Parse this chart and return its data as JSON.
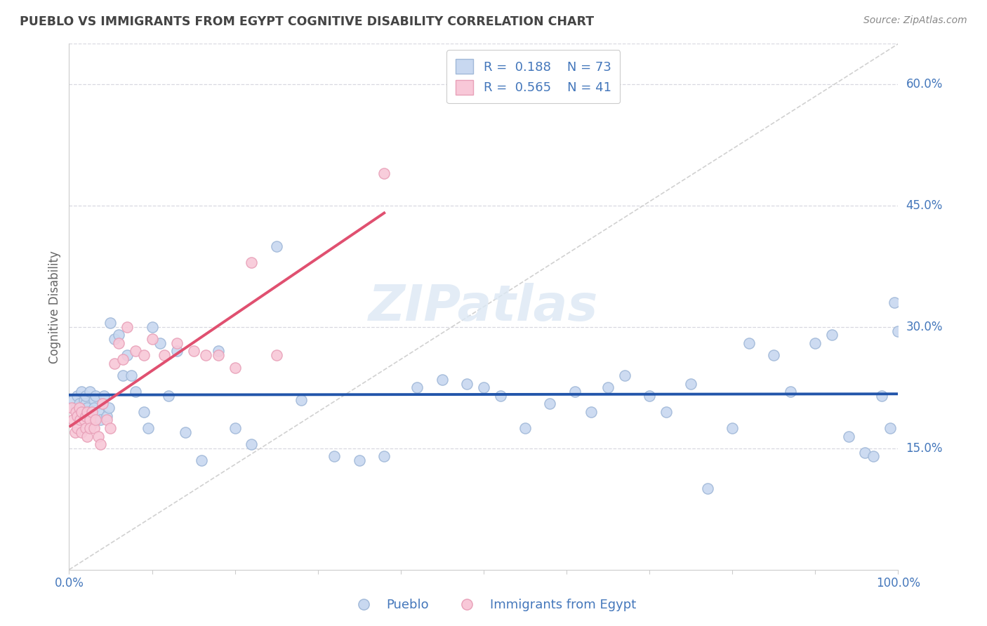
{
  "title": "PUEBLO VS IMMIGRANTS FROM EGYPT COGNITIVE DISABILITY CORRELATION CHART",
  "source": "Source: ZipAtlas.com",
  "ylabel": "Cognitive Disability",
  "xlim": [
    0.0,
    1.0
  ],
  "ylim": [
    0.0,
    0.65
  ],
  "yticks": [
    0.15,
    0.3,
    0.45,
    0.6
  ],
  "ytick_labels": [
    "15.0%",
    "30.0%",
    "45.0%",
    "60.0%"
  ],
  "background_color": "#ffffff",
  "grid_color": "#d8d8e0",
  "pueblo_face_color": "#c8d8f0",
  "pueblo_edge_color": "#a0b8d8",
  "egypt_face_color": "#f8c8d8",
  "egypt_edge_color": "#e8a0b8",
  "pueblo_line_color": "#2255aa",
  "egypt_line_color": "#e05070",
  "diagonal_color": "#cccccc",
  "tick_label_color": "#4477bb",
  "watermark_color": "#dce8f4",
  "ylabel_color": "#666666",
  "title_color": "#444444",
  "source_color": "#888888",
  "legend_text_color": "#4477bb",
  "R_pueblo": 0.188,
  "N_pueblo": 73,
  "R_egypt": 0.565,
  "N_egypt": 41,
  "pueblo_scatter_x": [
    0.005,
    0.008,
    0.01,
    0.012,
    0.015,
    0.015,
    0.018,
    0.02,
    0.02,
    0.022,
    0.025,
    0.025,
    0.028,
    0.03,
    0.03,
    0.032,
    0.035,
    0.038,
    0.04,
    0.042,
    0.045,
    0.048,
    0.05,
    0.055,
    0.06,
    0.065,
    0.07,
    0.075,
    0.08,
    0.09,
    0.095,
    0.1,
    0.11,
    0.12,
    0.13,
    0.14,
    0.16,
    0.18,
    0.2,
    0.22,
    0.25,
    0.28,
    0.32,
    0.35,
    0.38,
    0.42,
    0.45,
    0.48,
    0.5,
    0.52,
    0.55,
    0.58,
    0.61,
    0.63,
    0.65,
    0.67,
    0.7,
    0.72,
    0.75,
    0.77,
    0.8,
    0.82,
    0.85,
    0.87,
    0.9,
    0.92,
    0.94,
    0.96,
    0.97,
    0.98,
    0.99,
    0.995,
    1.0
  ],
  "pueblo_scatter_y": [
    0.21,
    0.2,
    0.215,
    0.205,
    0.195,
    0.22,
    0.21,
    0.205,
    0.215,
    0.2,
    0.195,
    0.22,
    0.18,
    0.21,
    0.2,
    0.215,
    0.195,
    0.185,
    0.205,
    0.215,
    0.19,
    0.2,
    0.305,
    0.285,
    0.29,
    0.24,
    0.265,
    0.24,
    0.22,
    0.195,
    0.175,
    0.3,
    0.28,
    0.215,
    0.27,
    0.17,
    0.135,
    0.27,
    0.175,
    0.155,
    0.4,
    0.21,
    0.14,
    0.135,
    0.14,
    0.225,
    0.235,
    0.23,
    0.225,
    0.215,
    0.175,
    0.205,
    0.22,
    0.195,
    0.225,
    0.24,
    0.215,
    0.195,
    0.23,
    0.1,
    0.175,
    0.28,
    0.265,
    0.22,
    0.28,
    0.29,
    0.165,
    0.145,
    0.14,
    0.215,
    0.175,
    0.33,
    0.295
  ],
  "egypt_scatter_x": [
    0.003,
    0.005,
    0.007,
    0.008,
    0.01,
    0.01,
    0.012,
    0.013,
    0.015,
    0.015,
    0.018,
    0.02,
    0.02,
    0.022,
    0.022,
    0.025,
    0.025,
    0.028,
    0.03,
    0.032,
    0.035,
    0.038,
    0.04,
    0.045,
    0.05,
    0.055,
    0.06,
    0.065,
    0.07,
    0.08,
    0.09,
    0.1,
    0.115,
    0.13,
    0.15,
    0.165,
    0.18,
    0.2,
    0.22,
    0.25,
    0.38
  ],
  "egypt_scatter_y": [
    0.2,
    0.185,
    0.17,
    0.195,
    0.19,
    0.175,
    0.2,
    0.185,
    0.195,
    0.17,
    0.185,
    0.19,
    0.175,
    0.195,
    0.165,
    0.185,
    0.175,
    0.195,
    0.175,
    0.185,
    0.165,
    0.155,
    0.205,
    0.185,
    0.175,
    0.255,
    0.28,
    0.26,
    0.3,
    0.27,
    0.265,
    0.285,
    0.265,
    0.28,
    0.27,
    0.265,
    0.265,
    0.25,
    0.38,
    0.265,
    0.49
  ]
}
